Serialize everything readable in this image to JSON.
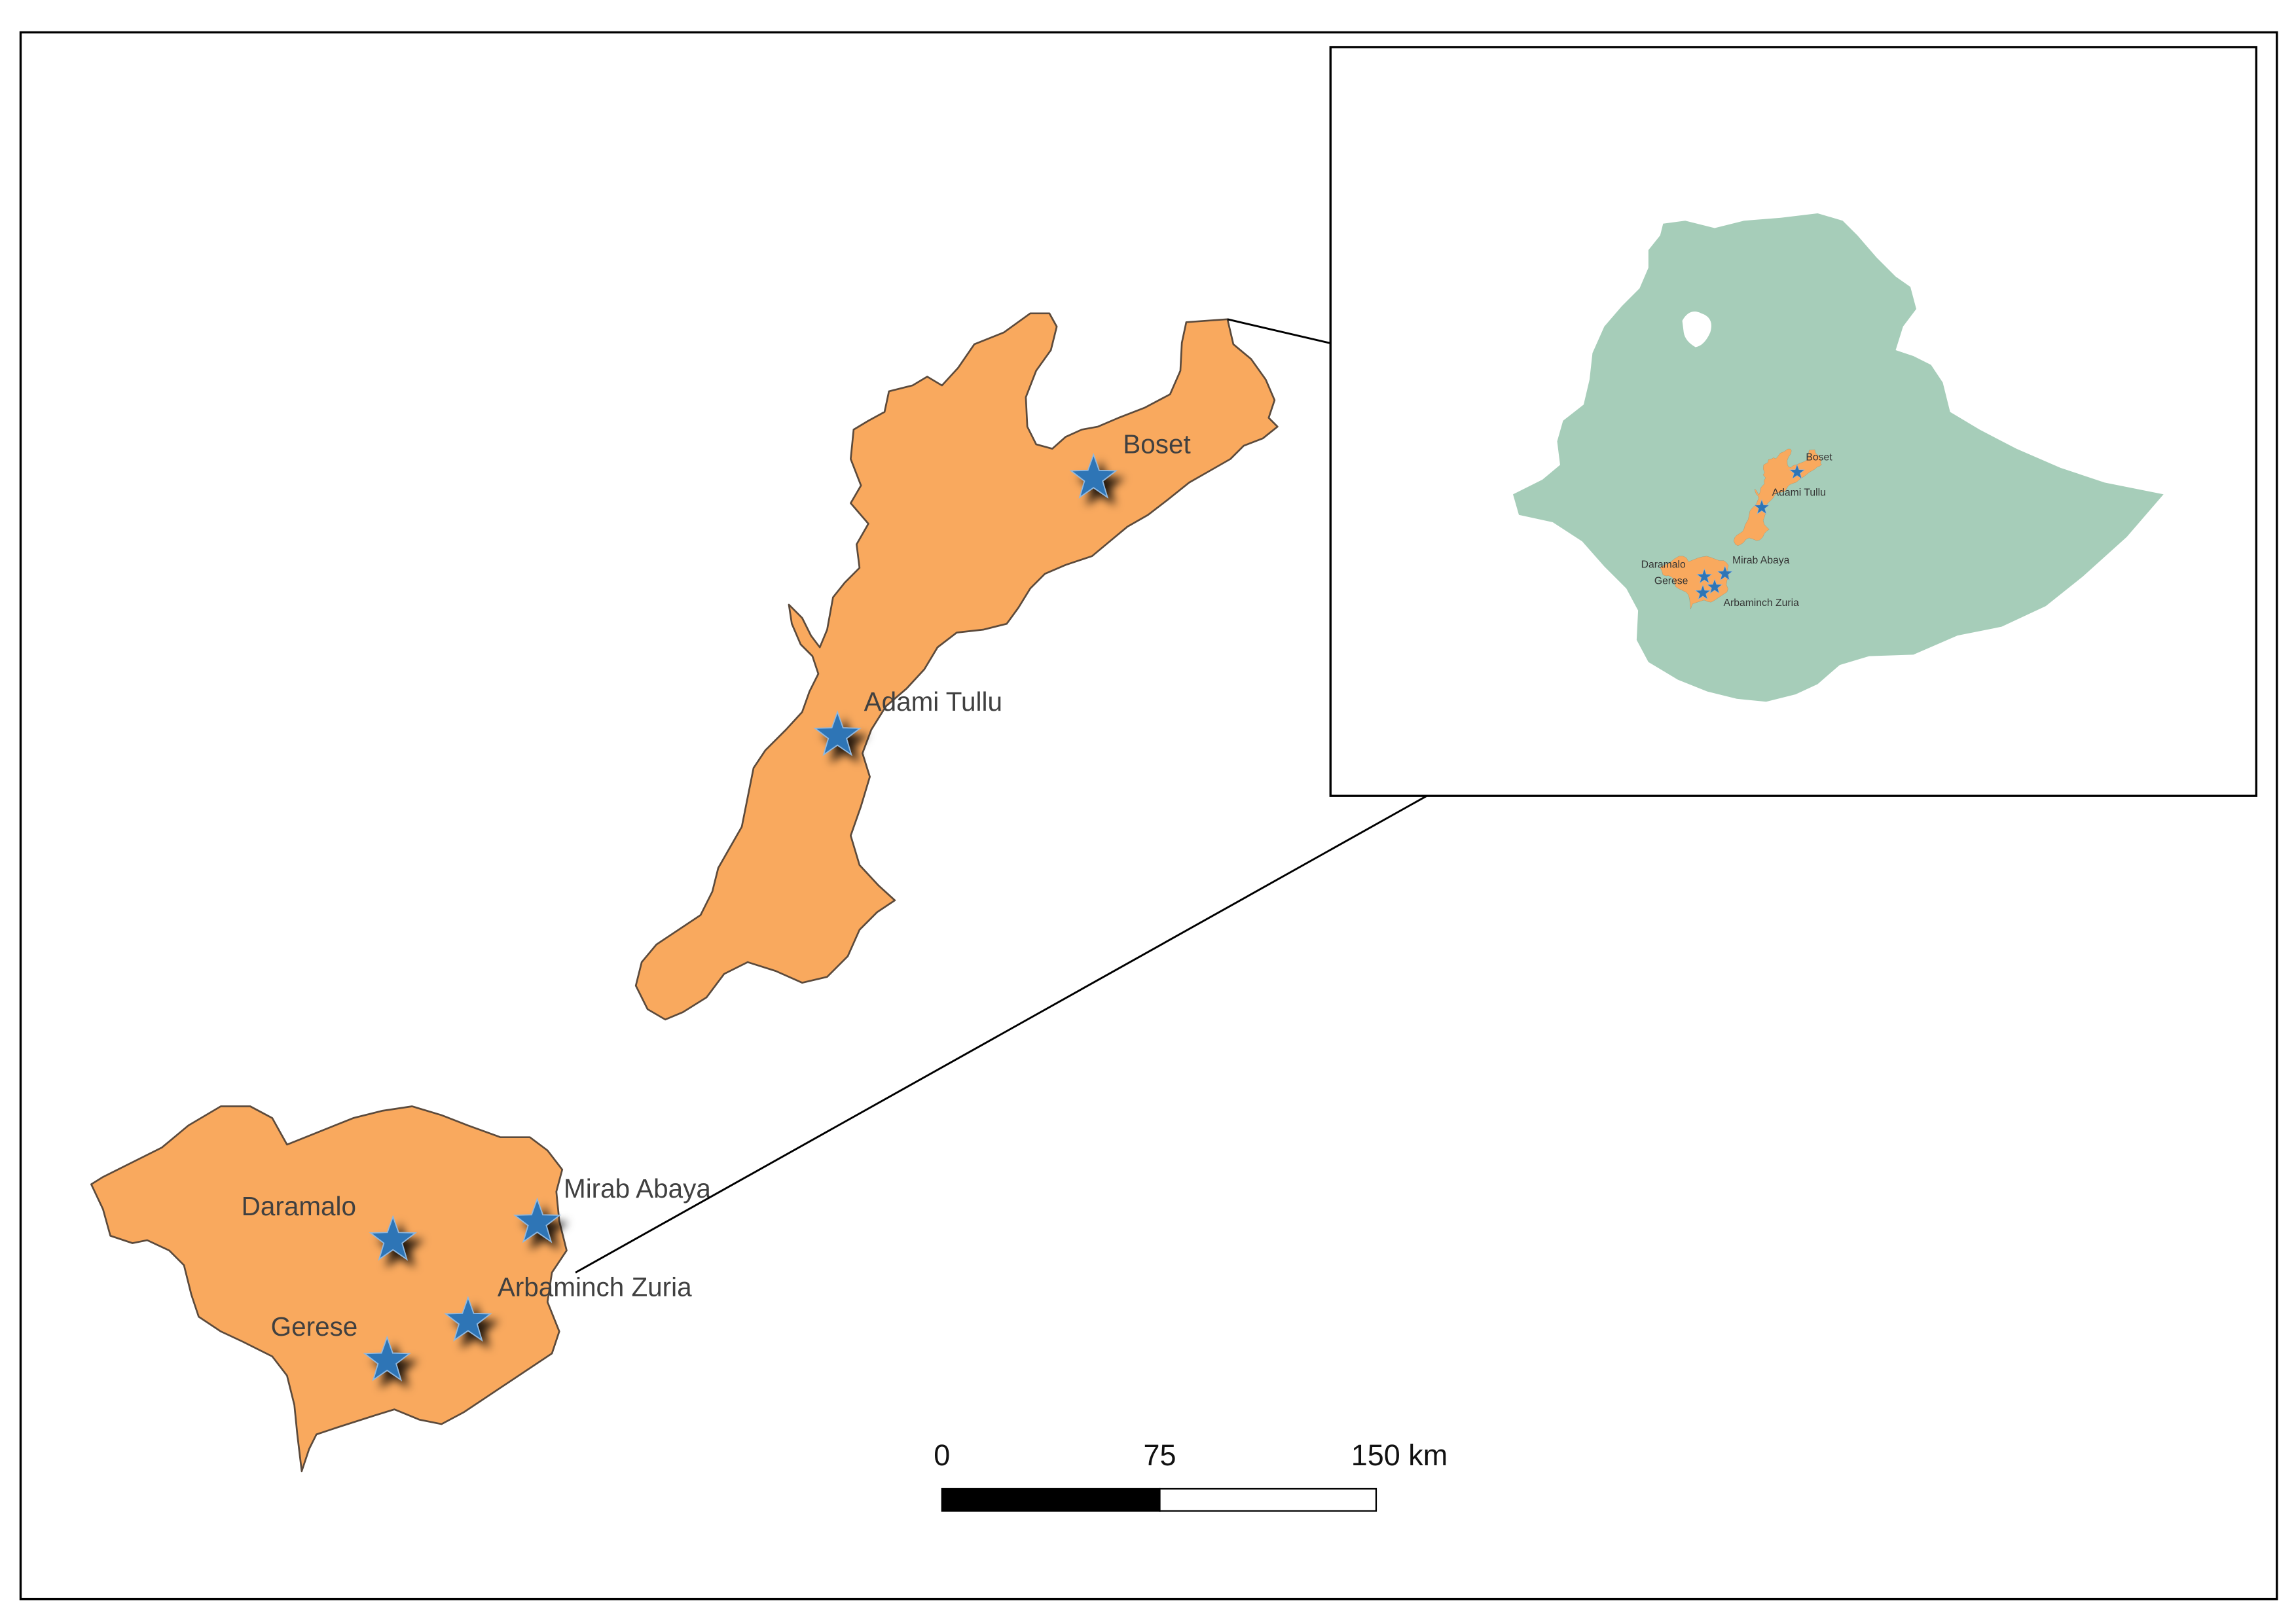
{
  "main_map": {
    "sites": {
      "boset": "Boset",
      "adami_tullu": "Adami Tullu",
      "daramalo": "Daramalo",
      "mirab_abaya": "Mirab Abaya",
      "arbaminch_zuria": "Arbaminch Zuria",
      "gerese": "Gerese"
    }
  },
  "inset_map": {
    "sites": {
      "boset": "Boset",
      "adami_tullu": "Adami Tullu",
      "daramalo": "Daramalo",
      "mirab_abaya": "Mirab Abaya",
      "gerese": "Gerese",
      "arbaminch_zuria": "Arbaminch Zuria"
    }
  },
  "scale_bar": {
    "ticks": [
      "0",
      "75",
      "150 km"
    ]
  },
  "marker_icon": "star-icon",
  "colors": {
    "study_area": "#f9a95e",
    "country": "#a6cdb9",
    "site_marker": "#2e75b6",
    "lake": "#ffffff",
    "frame": "#000000",
    "scale_dark": "#000000",
    "scale_light": "#ffffff"
  }
}
